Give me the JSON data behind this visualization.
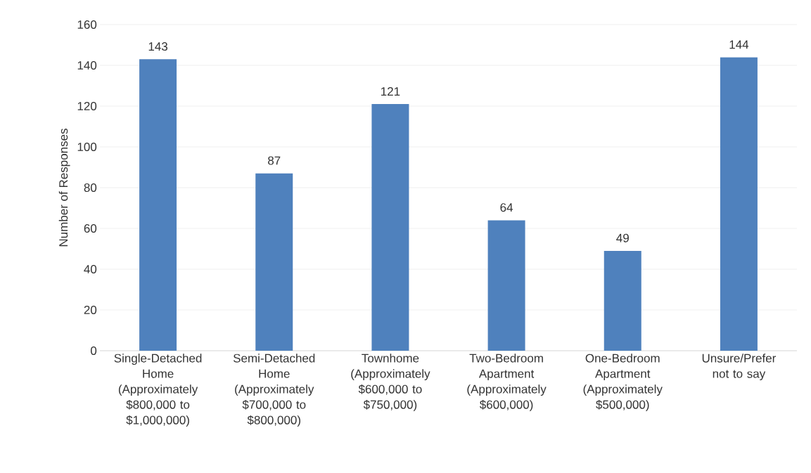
{
  "chart_data": {
    "type": "bar",
    "ylabel": "Number of Responses",
    "categories": [
      "Single-Detached Home (Approximately $800,000 to $1,000,000)",
      "Semi-Detached Home (Approximately $700,000 to $800,000)",
      "Townhome (Approximately $600,000 to $750,000)",
      "Two-Bedroom Apartment (Approximately $600,000)",
      "One-Bedroom Apartment (Approximately $500,000)",
      "Unsure/Prefer not to say"
    ],
    "values": [
      143,
      87,
      121,
      64,
      49,
      144
    ],
    "color": "#4f81bd",
    "ylim": [
      0,
      160
    ],
    "yticks": [
      0,
      20,
      40,
      60,
      80,
      100,
      120,
      140,
      160
    ],
    "grid": "y",
    "data_labels": true
  }
}
